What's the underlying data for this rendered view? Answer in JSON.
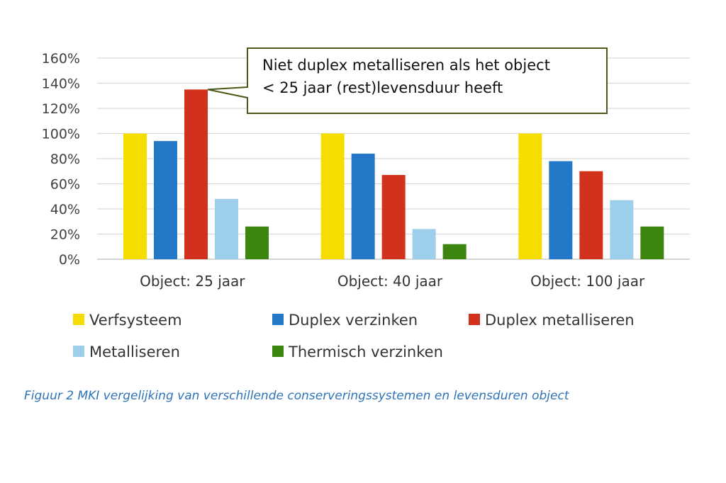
{
  "chart_data": {
    "type": "bar",
    "categories": [
      "Object: 25 jaar",
      "Object: 40 jaar",
      "Object: 100 jaar"
    ],
    "series": [
      {
        "name": "Verfsysteem",
        "color": "#f5dd00",
        "values": [
          100,
          100,
          100
        ]
      },
      {
        "name": "Duplex verzinken",
        "color": "#2478c8",
        "values": [
          94,
          84,
          78
        ]
      },
      {
        "name": "Duplex metalliseren",
        "color": "#d2311c",
        "values": [
          135,
          67,
          70
        ]
      },
      {
        "name": "Metalliseren",
        "color": "#9dcfec",
        "values": [
          48,
          24,
          47
        ]
      },
      {
        "name": "Thermisch verzinken",
        "color": "#3c8610",
        "values": [
          26,
          12,
          26
        ]
      }
    ],
    "ylim": [
      0,
      160
    ],
    "yticks": [
      "0%",
      "20%",
      "40%",
      "60%",
      "80%",
      "100%",
      "120%",
      "140%",
      "160%"
    ],
    "grid": true,
    "legend_position": "bottom",
    "annotation": {
      "lines": [
        "Niet duplex metalliseren als het object",
        "< 25 jaar (rest)levensduur heeft"
      ],
      "target_category": "Object: 25 jaar",
      "target_series": "Duplex metalliseren"
    }
  },
  "caption": "Figuur 2 MKI vergelijking van verschillende conserveringssystemen en levensduren object"
}
